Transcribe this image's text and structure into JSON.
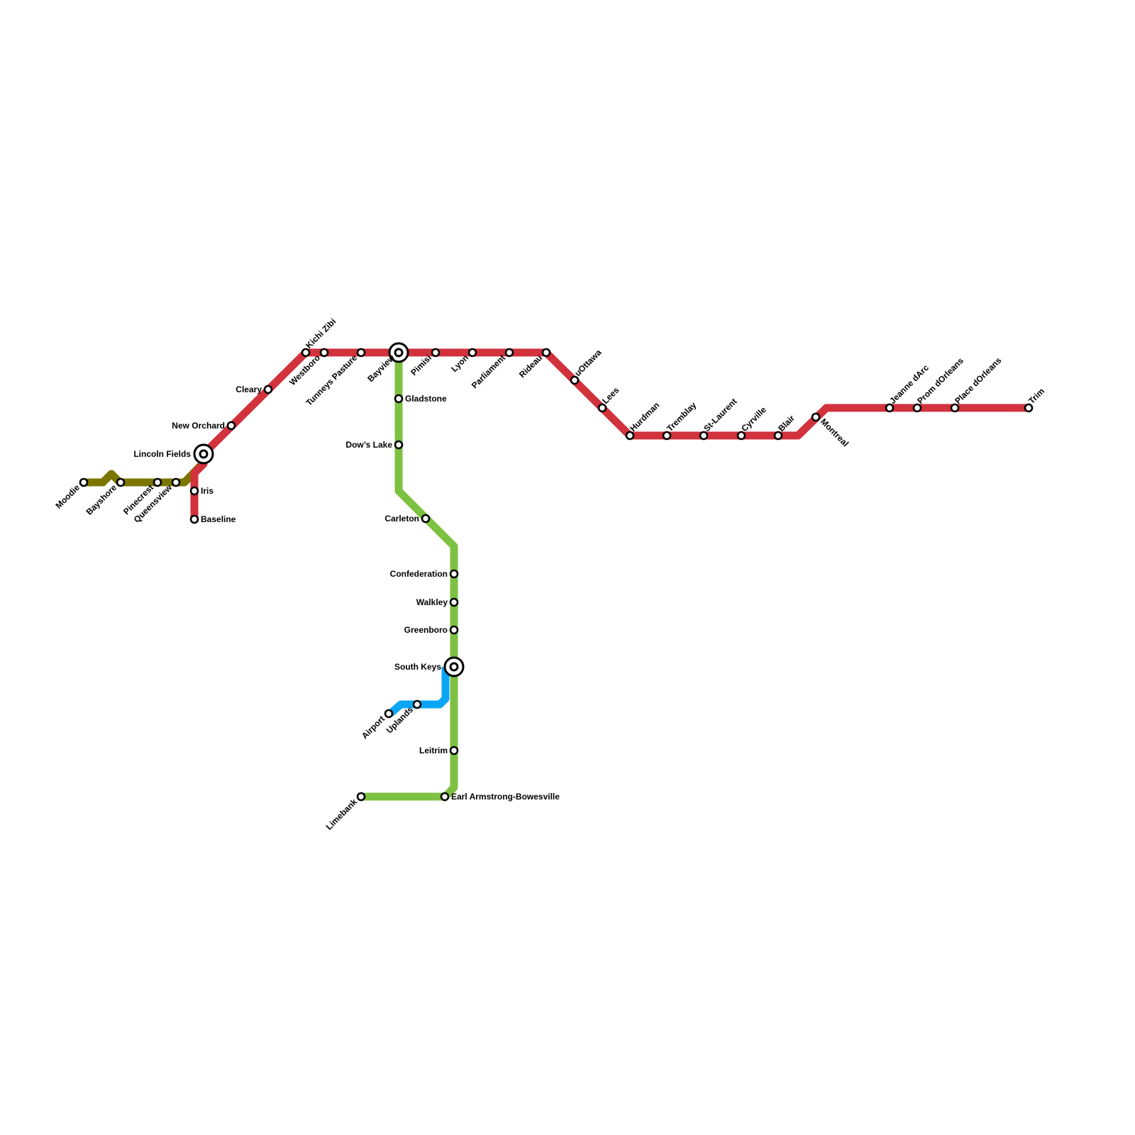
{
  "colors": {
    "olive": "#7b7600",
    "red": "#d1323c",
    "green": "#7dc142",
    "blue": "#0aa6f5"
  },
  "lines": [
    {
      "id": "olive",
      "color": "#7b7600"
    },
    {
      "id": "red",
      "color": "#d1323c"
    },
    {
      "id": "green",
      "color": "#7dc142"
    },
    {
      "id": "blue",
      "color": "#0aa6f5"
    }
  ],
  "stations": [
    {
      "name": "Moodie"
    },
    {
      "name": "Bayshore"
    },
    {
      "name": "Pinecrest"
    },
    {
      "name": "Queensview"
    },
    {
      "name": "Lincoln Fields",
      "interchange": true
    },
    {
      "name": "Iris"
    },
    {
      "name": "Baseline"
    },
    {
      "name": "New Orchard"
    },
    {
      "name": "Cleary"
    },
    {
      "name": "Kichi Zibi"
    },
    {
      "name": "Westboro"
    },
    {
      "name": "Tunneys Pasture"
    },
    {
      "name": "Bayview",
      "interchange": true
    },
    {
      "name": "Pimisi"
    },
    {
      "name": "Lyon"
    },
    {
      "name": "Parliament"
    },
    {
      "name": "Rideau"
    },
    {
      "name": "uOttawa"
    },
    {
      "name": "Lees"
    },
    {
      "name": "Hurdman"
    },
    {
      "name": "Tremblay"
    },
    {
      "name": "St-Laurent"
    },
    {
      "name": "Cyrville"
    },
    {
      "name": "Blair"
    },
    {
      "name": "Montreal"
    },
    {
      "name": "Jeanne dArc"
    },
    {
      "name": "Prom dOrleans"
    },
    {
      "name": "Place dOrleans"
    },
    {
      "name": "Trim"
    },
    {
      "name": "Gladstone"
    },
    {
      "name": "Dow’s Lake"
    },
    {
      "name": "Carleton"
    },
    {
      "name": "Confederation"
    },
    {
      "name": "Walkley"
    },
    {
      "name": "Greenboro"
    },
    {
      "name": "South Keys",
      "interchange": true
    },
    {
      "name": "Leitrim"
    },
    {
      "name": "Earl Armstrong-Bowesville"
    },
    {
      "name": "Limebank"
    },
    {
      "name": "Uplands"
    },
    {
      "name": "Airport"
    }
  ]
}
